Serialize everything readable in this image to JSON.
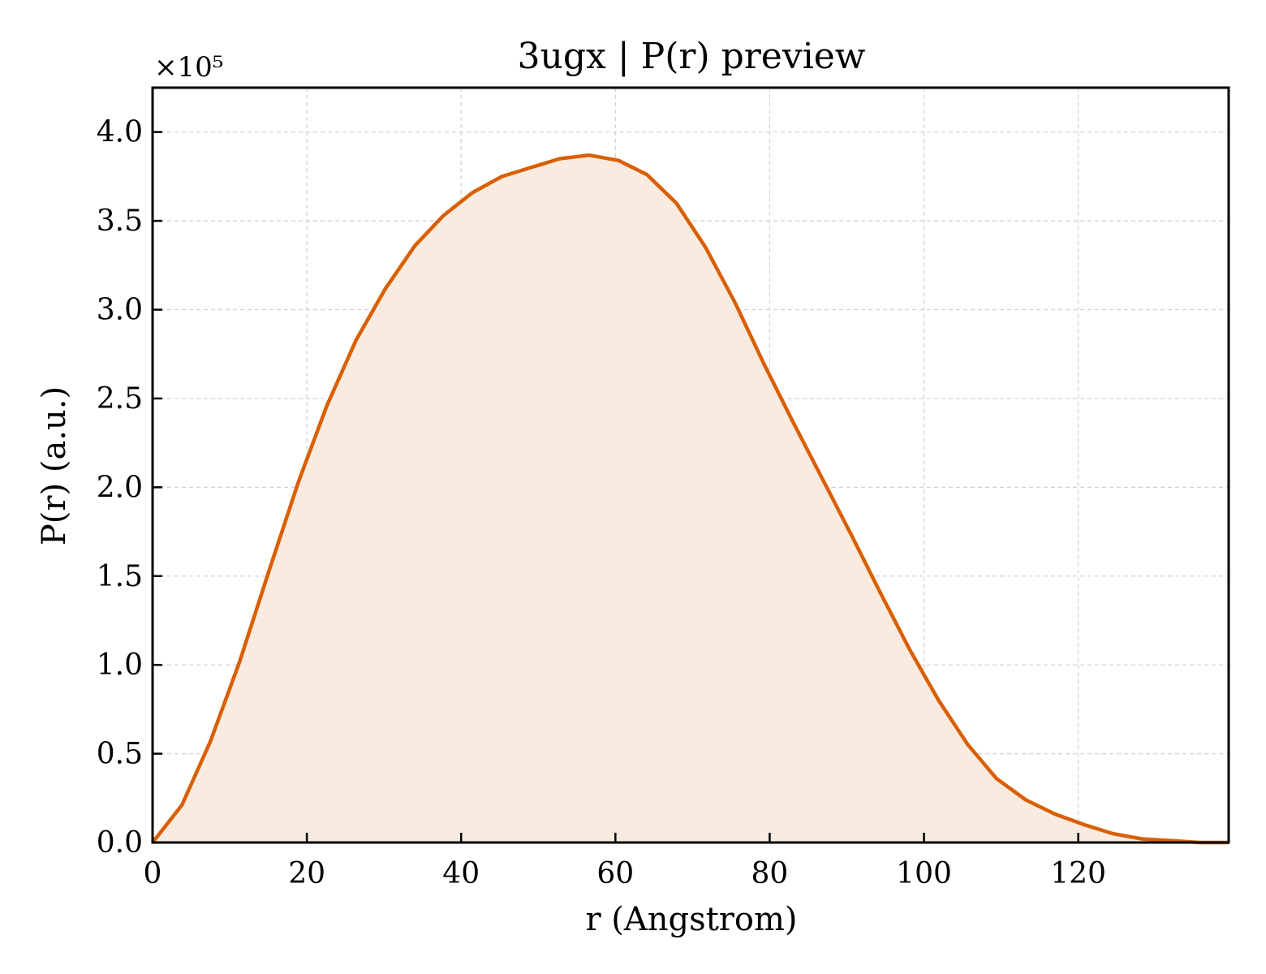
{
  "chart_data": {
    "type": "area",
    "title": "3ugx | P(r) preview",
    "xlabel": "r (Angstrom)",
    "ylabel": "P(r) (a.u.)",
    "y_multiplier": "×10⁵",
    "xlim": [
      0,
      139.5
    ],
    "ylim": [
      0,
      4.25
    ],
    "xticks": [
      0,
      20,
      40,
      60,
      80,
      100,
      120
    ],
    "yticks": [
      0.0,
      0.5,
      1.0,
      1.5,
      2.0,
      2.5,
      3.0,
      3.5,
      4.0
    ],
    "grid": true,
    "line_color": "#d95f02",
    "fill_color": "#f9ebe0",
    "series": [
      {
        "x": [
          0,
          3.8,
          7.5,
          11.3,
          15.1,
          18.9,
          22.6,
          26.4,
          30.2,
          34.0,
          37.7,
          41.5,
          45.3,
          49.0,
          52.8,
          56.6,
          60.4,
          64.1,
          67.9,
          71.7,
          75.5,
          79.2,
          83.0,
          86.8,
          90.6,
          94.3,
          98.1,
          101.9,
          105.7,
          109.4,
          113.2,
          117.0,
          120.8,
          124.5,
          128.3,
          132.1,
          135.8,
          139.5
        ],
        "y": [
          0.0,
          0.21,
          0.57,
          1.02,
          1.53,
          2.03,
          2.46,
          2.83,
          3.12,
          3.36,
          3.53,
          3.66,
          3.75,
          3.8,
          3.85,
          3.87,
          3.84,
          3.76,
          3.6,
          3.35,
          3.04,
          2.7,
          2.37,
          2.05,
          1.73,
          1.41,
          1.09,
          0.8,
          0.55,
          0.36,
          0.24,
          0.16,
          0.1,
          0.05,
          0.02,
          0.01,
          0.0,
          0.0
        ]
      }
    ]
  }
}
